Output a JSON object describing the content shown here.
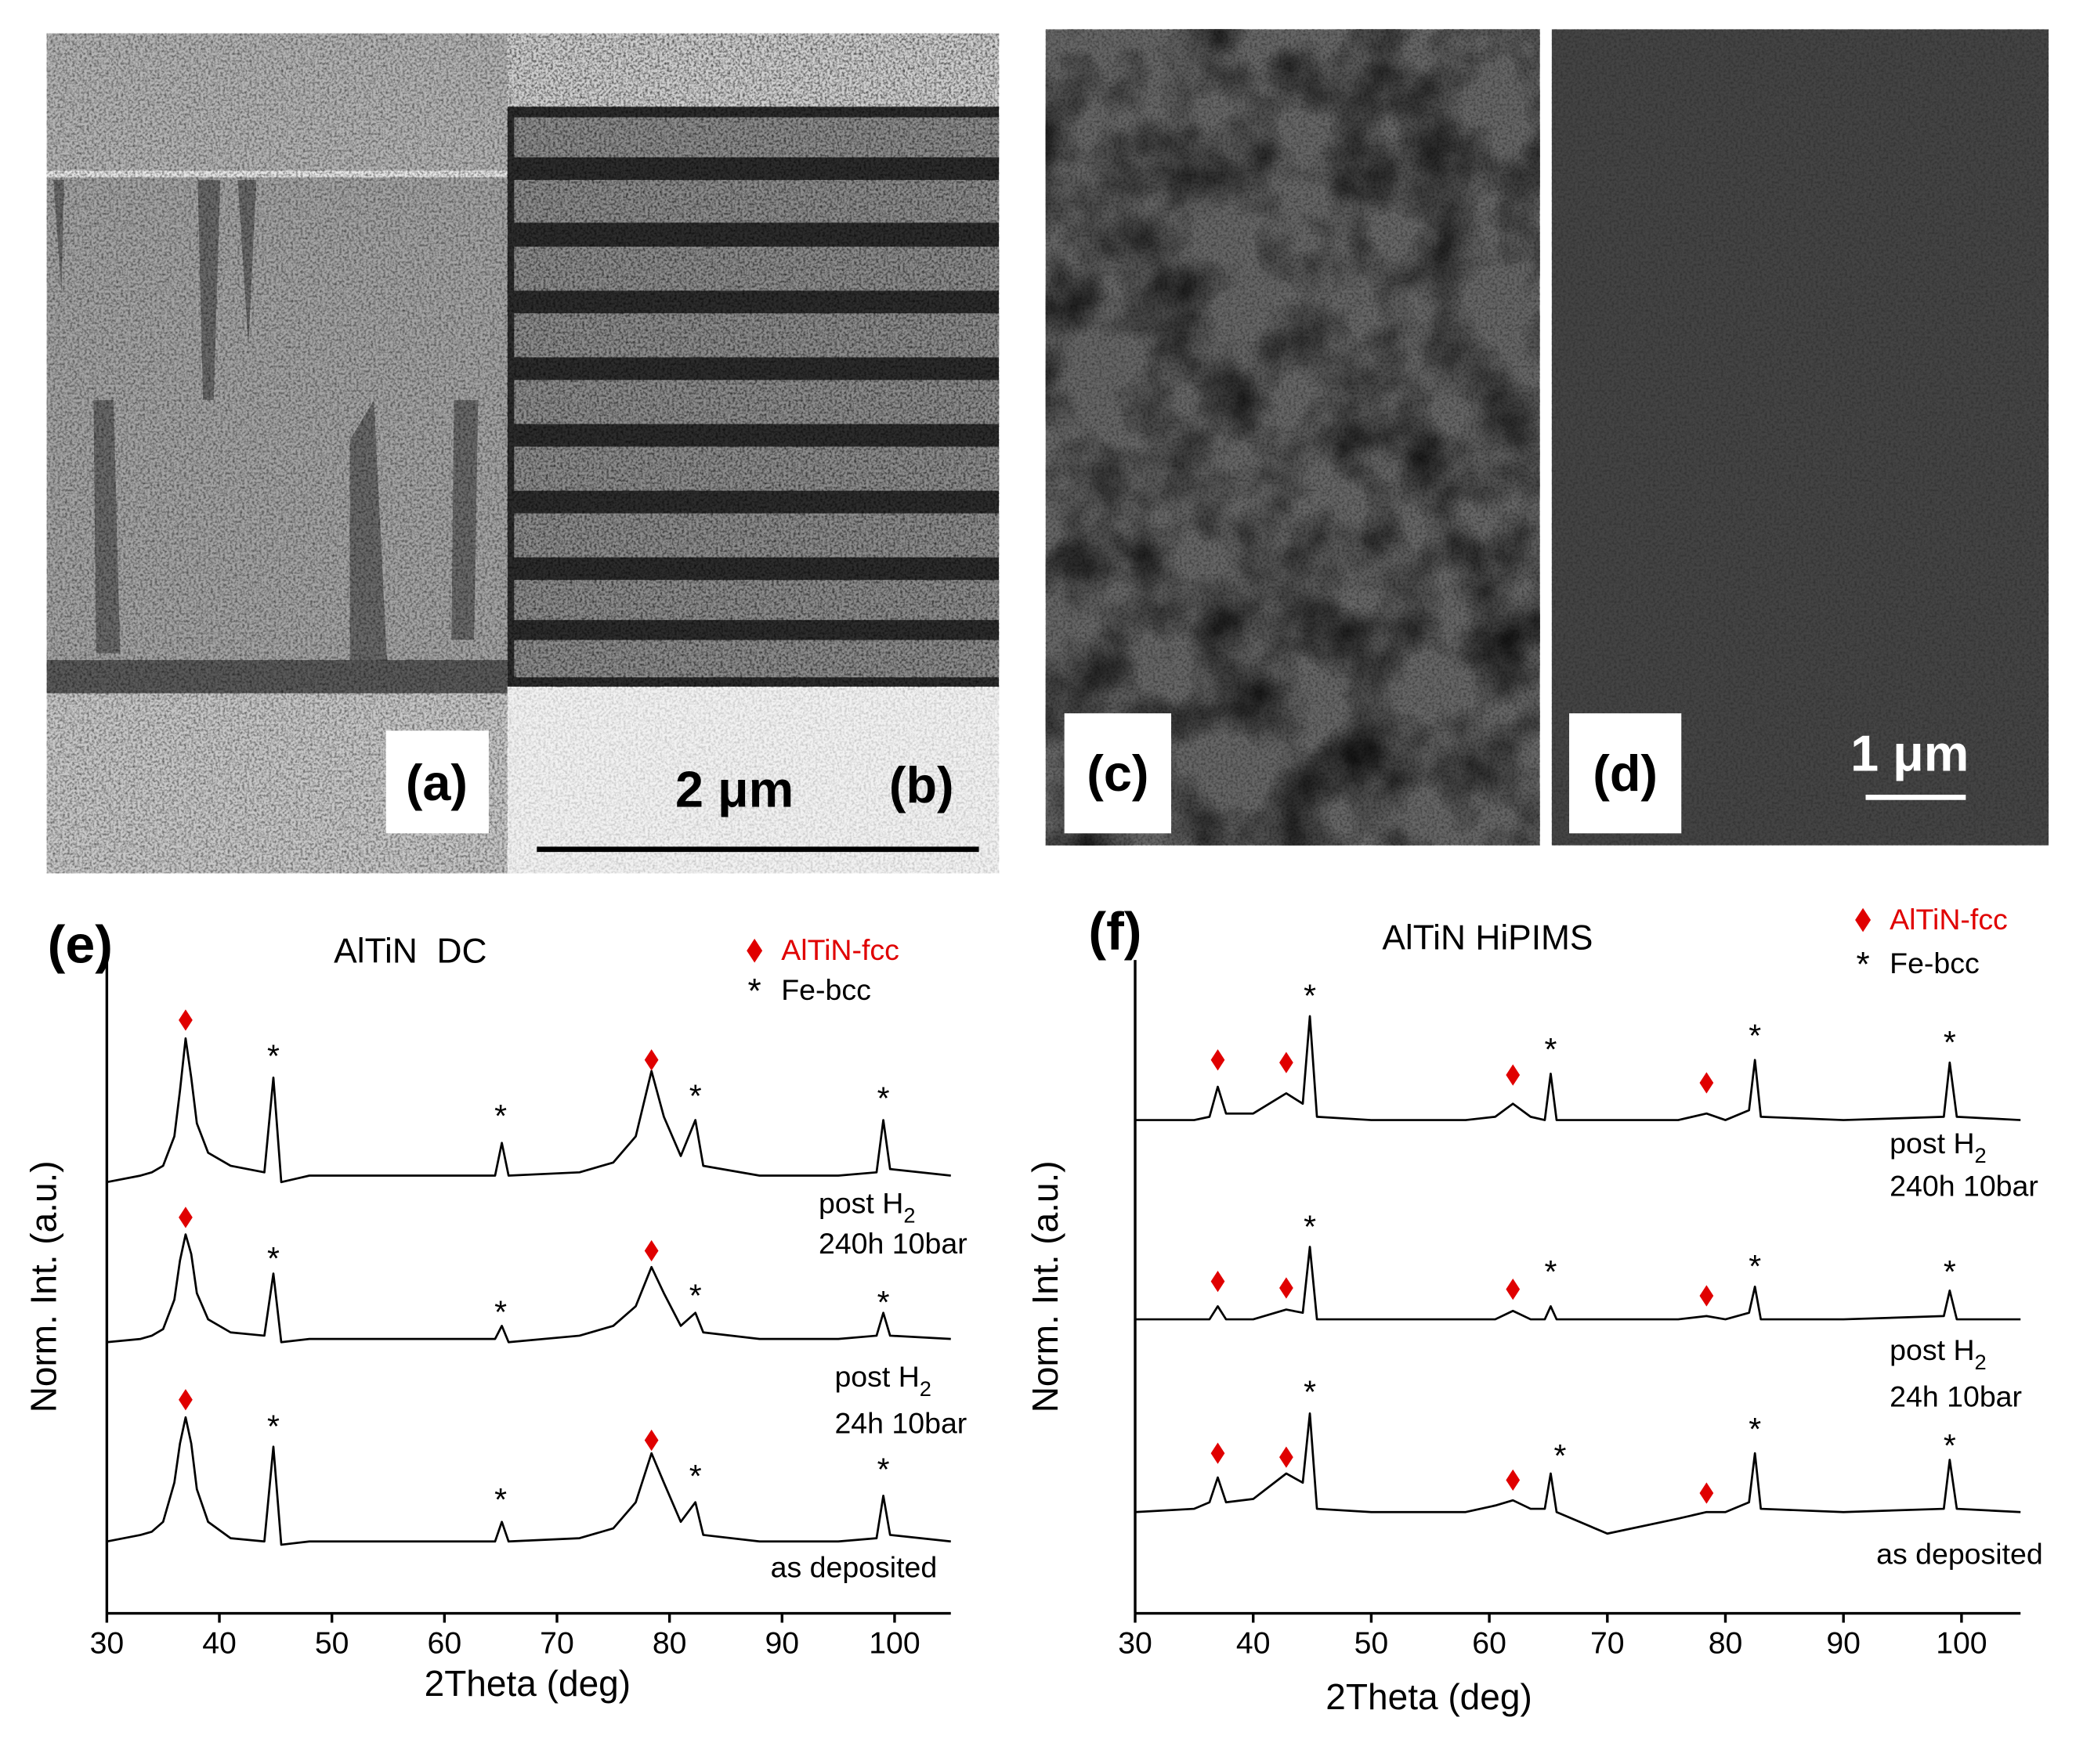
{
  "micrographs": {
    "panels": [
      "(a)",
      "(b)",
      "(c)",
      "(d)"
    ],
    "scale_bars": [
      "2 μm",
      "1 μm"
    ]
  },
  "chart_data": [
    {
      "type": "line",
      "panel": "(e)",
      "title": "AlTiN  DC",
      "xlabel": "2Theta (deg)",
      "ylabel": "Norm. Int. (a.u.)",
      "xlim": [
        30,
        105
      ],
      "xticks": [
        30,
        40,
        50,
        60,
        70,
        80,
        90,
        100
      ],
      "ylim": [
        0,
        100
      ],
      "x": [
        30,
        33,
        34,
        35,
        36,
        36.5,
        37,
        37.5,
        38,
        39,
        41,
        44,
        44.8,
        45.5,
        48,
        55,
        64.5,
        65.1,
        65.7,
        72,
        75,
        77,
        78.4,
        79.5,
        81,
        82.3,
        83,
        88,
        95,
        98.4,
        99,
        99.6,
        105
      ],
      "series": [
        {
          "color": "#000000",
          "annotation": {
            "text": "post H",
            "sub": "2",
            "line2": "240h 10bar"
          },
          "values": [
            66,
            67,
            67.5,
            68.5,
            73,
            80,
            88,
            82,
            75,
            70.5,
            68.5,
            67.5,
            82,
            66,
            67,
            67,
            67,
            72,
            67,
            67.5,
            69,
            73,
            83,
            76,
            70,
            75.5,
            68.5,
            67,
            67,
            67.5,
            75.5,
            68,
            67
          ]
        },
        {
          "color": "#000000",
          "annotation": {
            "text": "post H",
            "sub": "2",
            "line2": "24h 10bar"
          },
          "values": [
            41.5,
            42,
            42.5,
            43.5,
            48,
            54,
            58,
            55,
            49,
            45,
            43,
            42.5,
            52,
            41.5,
            42,
            42,
            42,
            44,
            41.5,
            42.5,
            44,
            47,
            53,
            49,
            44,
            46,
            43,
            42,
            42,
            42.5,
            46,
            42.5,
            42
          ]
        },
        {
          "color": "#000000",
          "annotation": {
            "text": "as deposited"
          },
          "values": [
            11,
            12,
            12.5,
            14,
            20,
            26,
            30,
            26,
            19,
            14,
            11.5,
            11,
            25.5,
            10.5,
            11,
            11,
            11,
            14,
            11,
            11.5,
            13,
            17,
            24.5,
            20,
            14,
            17,
            12,
            11,
            11,
            11.5,
            18,
            12,
            11
          ]
        }
      ],
      "markers": [
        {
          "name": "AlTiN-fcc",
          "color": "#e00000",
          "shape": "diamond",
          "x": [
            37,
            78.4,
            37,
            78.4,
            37,
            78.4
          ],
          "y": [
            90.8,
            84.7,
            60.6,
            55.5,
            32.7,
            26.5
          ]
        },
        {
          "name": "Fe-bcc",
          "color": "#000000",
          "symbol": "*",
          "x": [
            44.8,
            65,
            82.3,
            99,
            44.8,
            65,
            82.3,
            99,
            44.8,
            65,
            82.3,
            99
          ],
          "y": [
            85.7,
            76.5,
            79.6,
            79.2,
            54.7,
            46.5,
            49,
            48,
            29,
            17.8,
            21.4,
            22.4
          ]
        }
      ]
    },
    {
      "type": "line",
      "panel": "(f)",
      "title": "AlTiN HiPIMS",
      "xlabel": "2Theta (deg)",
      "ylabel": "Norm. Int. (a.u.)",
      "xlim": [
        30,
        105
      ],
      "xticks": [
        30,
        40,
        50,
        60,
        70,
        80,
        90,
        100
      ],
      "ylim": [
        0,
        100
      ],
      "x": [
        30,
        35,
        36.3,
        37,
        37.7,
        40,
        42.8,
        44.2,
        44.8,
        45.4,
        50,
        58,
        60.5,
        62,
        63.5,
        64.7,
        65.2,
        65.7,
        70,
        76,
        78.4,
        80,
        82,
        82.5,
        83,
        90,
        98.5,
        99,
        99.6,
        105
      ],
      "series": [
        {
          "color": "#000000",
          "annotation": {
            "text": "post H",
            "sub": "2",
            "line2": "240h 10bar"
          },
          "values": [
            75.5,
            75.5,
            76,
            80.6,
            76.5,
            76.5,
            79.6,
            78,
            91.4,
            76,
            75.5,
            75.5,
            76,
            78,
            76,
            75.5,
            82.6,
            75.5,
            75.5,
            75.5,
            76.5,
            75.5,
            77,
            84.7,
            76,
            75.5,
            76,
            84.3,
            76,
            75.5
          ]
        },
        {
          "color": "#000000",
          "annotation": {
            "text": "post H",
            "sub": "2",
            "line2": "24h 10bar"
          },
          "values": [
            45,
            45,
            45,
            47,
            45,
            45,
            46.5,
            46,
            56.1,
            45,
            45,
            45,
            45,
            46.3,
            45,
            45,
            47,
            45,
            45,
            45,
            45.5,
            45,
            46,
            50,
            45,
            45,
            45.5,
            49.4,
            45,
            45
          ]
        },
        {
          "color": "#000000",
          "annotation": {
            "text": "as deposited"
          },
          "values": [
            15.5,
            16,
            17,
            20.8,
            17,
            17.5,
            21.4,
            20,
            30.6,
            16,
            15.5,
            15.5,
            16.5,
            17.3,
            16,
            16,
            21.4,
            15.5,
            12.2,
            14.5,
            15.5,
            15.5,
            17,
            24.5,
            16,
            15.5,
            16,
            23.5,
            16,
            15.5
          ]
        }
      ],
      "markers": [
        {
          "name": "AlTiN-fcc",
          "color": "#e00000",
          "shape": "diamond",
          "x": [
            37,
            42.8,
            62,
            78.4,
            37,
            42.8,
            62,
            78.4,
            37,
            42.8,
            62,
            78.4
          ],
          "y": [
            84.7,
            84.3,
            82.4,
            81.2,
            50.8,
            49.8,
            49.6,
            48.6,
            24.5,
            23.9,
            20.4,
            18.4
          ]
        },
        {
          "name": "Fe-bcc",
          "color": "#000000",
          "symbol": "*",
          "x": [
            44.8,
            65.2,
            82.5,
            99,
            44.8,
            65.2,
            82.5,
            99,
            44.8,
            66,
            82.5,
            99
          ],
          "y": [
            94.9,
            86.7,
            88.8,
            87.8,
            59.6,
            52.7,
            53.5,
            52.7,
            34.3,
            24.5,
            28.6,
            26.1
          ]
        }
      ]
    }
  ]
}
